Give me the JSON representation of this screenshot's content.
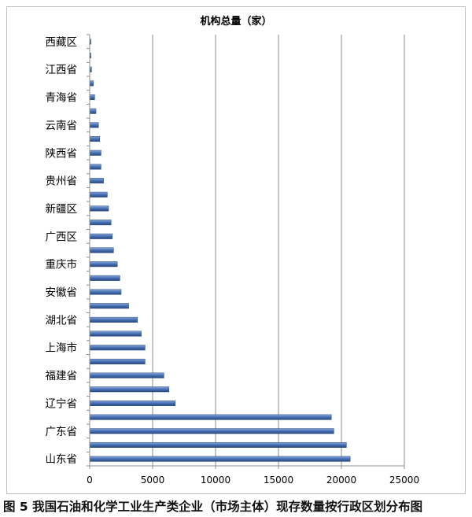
{
  "chart_data": {
    "type": "bar",
    "orientation": "horizontal",
    "title": "机构总量（家）",
    "xlabel": "",
    "ylabel": "",
    "xlim": [
      0,
      25000
    ],
    "x_ticks": [
      "0",
      "5000",
      "10000",
      "15000",
      "20000",
      "25000"
    ],
    "grid": true,
    "legend": "none",
    "bar_color": "#4a74b8",
    "categories_bottom_to_top": [
      "山东省",
      "",
      "广东省",
      "",
      "辽宁省",
      "",
      "福建省",
      "",
      "上海市",
      "",
      "湖北省",
      "",
      "安徽省",
      "",
      "重庆市",
      "",
      "广西区",
      "",
      "新疆区",
      "",
      "贵州省",
      "",
      "陕西省",
      "",
      "云南省",
      "",
      "青海省",
      "",
      "江西省",
      "",
      "西藏区"
    ],
    "values_bottom_to_top": [
      20700,
      20400,
      19400,
      19200,
      6800,
      6300,
      5900,
      4400,
      4400,
      4100,
      3800,
      3100,
      2500,
      2400,
      2200,
      1900,
      1800,
      1700,
      1500,
      1400,
      1100,
      900,
      900,
      800,
      700,
      500,
      400,
      300,
      150,
      100,
      100
    ]
  },
  "caption": "图 5  我国石油和化学工业生产类企业（市场主体）现存数量按行政区划分布图"
}
